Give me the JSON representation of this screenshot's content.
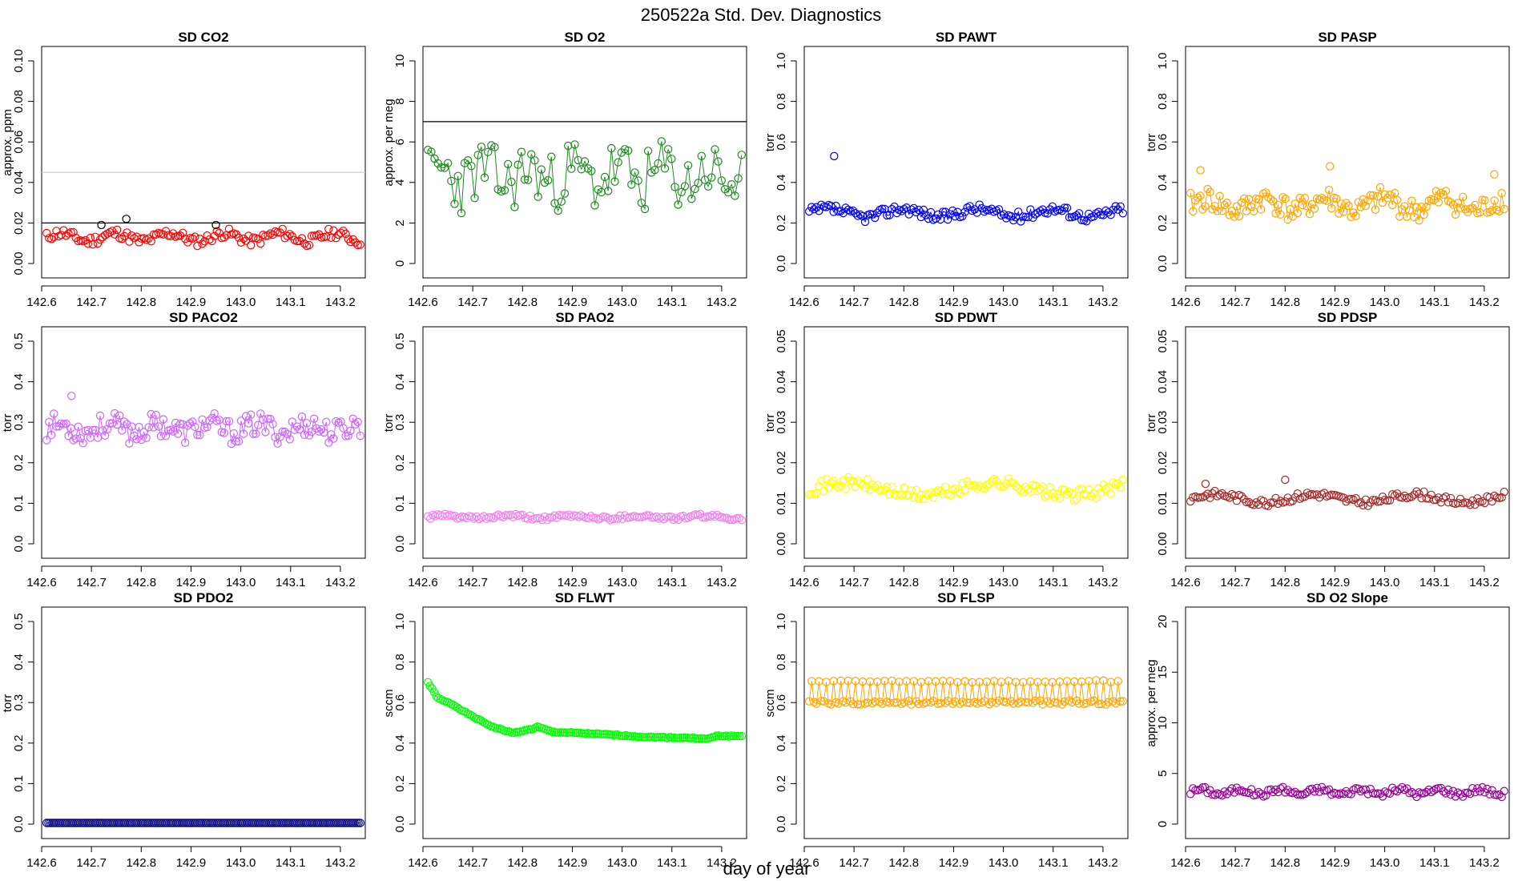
{
  "figure_title": "250522a   Std. Dev. Diagnostics",
  "x_axis_label": "day of year",
  "chart_data": [
    {
      "type": "scatter",
      "title": "SD CO2",
      "ylabel": "approx. ppm",
      "color": "#ff0000",
      "xlim": [
        142.6,
        143.25
      ],
      "ylim": [
        0,
        0.1
      ],
      "xticks": [
        "142.6",
        "142.7",
        "142.8",
        "142.9",
        "143.0",
        "143.1",
        "143.2"
      ],
      "yticks": [
        "0.00",
        "0.02",
        "0.04",
        "0.06",
        "0.08",
        "0.10"
      ],
      "reference_lines": [
        {
          "y": 0.02,
          "color": "#000000"
        },
        {
          "y": 0.045,
          "color": "#cccccc"
        }
      ],
      "x_start": 142.61,
      "x_end": 143.24,
      "base": 0.013,
      "amplitude": 0.002,
      "noise": 0.0025,
      "period": 0.11,
      "seed": 11,
      "highlight_points": [
        {
          "x": 142.72,
          "y": 0.019,
          "color": "#000000"
        },
        {
          "x": 142.77,
          "y": 0.022,
          "color": "#000000"
        },
        {
          "x": 142.95,
          "y": 0.019,
          "color": "#000000"
        }
      ]
    },
    {
      "type": "scatter",
      "title": "SD O2",
      "ylabel": "approx. per meg",
      "color": "#228b22",
      "xlim": [
        142.6,
        143.25
      ],
      "ylim": [
        0,
        10
      ],
      "xticks": [
        "142.6",
        "142.7",
        "142.8",
        "142.9",
        "143.0",
        "143.1",
        "143.2"
      ],
      "yticks": [
        "0",
        "2",
        "4",
        "6",
        "8",
        "10"
      ],
      "reference_lines": [
        {
          "y": 7,
          "color": "#000000"
        }
      ],
      "x_start": 142.61,
      "x_end": 143.24,
      "base": 4.3,
      "amplitude": 0.4,
      "noise": 1.5,
      "period": 0.09,
      "seed": 23,
      "n": 95,
      "show_lines": true
    },
    {
      "type": "scatter",
      "title": "SD PAWT",
      "ylabel": "torr",
      "color": "#0000ff",
      "xlim": [
        142.6,
        143.25
      ],
      "ylim": [
        0,
        1
      ],
      "xticks": [
        "142.6",
        "142.7",
        "142.8",
        "142.9",
        "143.0",
        "143.1",
        "143.2"
      ],
      "yticks": [
        "0.0",
        "0.2",
        "0.4",
        "0.6",
        "0.8",
        "1.0"
      ],
      "reference_lines": [],
      "x_start": 142.61,
      "x_end": 143.24,
      "base": 0.25,
      "amplitude": 0.02,
      "noise": 0.025,
      "period": 0.15,
      "seed": 37,
      "highlight_points": [
        {
          "x": 142.66,
          "y": 0.53,
          "color": "#0000ff"
        }
      ],
      "show_lines": true
    },
    {
      "type": "scatter",
      "title": "SD PASP",
      "ylabel": "torr",
      "color": "#ffa500",
      "xlim": [
        142.6,
        143.25
      ],
      "ylim": [
        0,
        1
      ],
      "xticks": [
        "142.6",
        "142.7",
        "142.8",
        "142.9",
        "143.0",
        "143.1",
        "143.2"
      ],
      "yticks": [
        "0.0",
        "0.2",
        "0.4",
        "0.6",
        "0.8",
        "1.0"
      ],
      "reference_lines": [],
      "x_start": 142.61,
      "x_end": 143.24,
      "base": 0.29,
      "amplitude": 0.03,
      "noise": 0.06,
      "period": 0.12,
      "seed": 41,
      "highlight_points": [
        {
          "x": 142.63,
          "y": 0.46,
          "color": "#ffa500"
        },
        {
          "x": 142.89,
          "y": 0.48,
          "color": "#ffa500"
        },
        {
          "x": 143.22,
          "y": 0.44,
          "color": "#ffa500"
        }
      ],
      "show_lines": true
    },
    {
      "type": "scatter",
      "title": "SD PACO2",
      "ylabel": "torr",
      "color": "#cc66ff",
      "xlim": [
        142.6,
        143.25
      ],
      "ylim": [
        0,
        0.5
      ],
      "xticks": [
        "142.6",
        "142.7",
        "142.8",
        "142.9",
        "143.0",
        "143.1",
        "143.2"
      ],
      "yticks": [
        "0.0",
        "0.1",
        "0.2",
        "0.3",
        "0.4",
        "0.5"
      ],
      "reference_lines": [],
      "x_start": 142.61,
      "x_end": 143.24,
      "base": 0.285,
      "amplitude": 0.01,
      "noise": 0.03,
      "period": 0.1,
      "seed": 53,
      "highlight_points": [
        {
          "x": 142.66,
          "y": 0.365,
          "color": "#cc66ff"
        }
      ],
      "show_lines": true
    },
    {
      "type": "scatter",
      "title": "SD PAO2",
      "ylabel": "torr",
      "color": "#ee82ee",
      "xlim": [
        142.6,
        143.25
      ],
      "ylim": [
        0,
        0.5
      ],
      "xticks": [
        "142.6",
        "142.7",
        "142.8",
        "142.9",
        "143.0",
        "143.1",
        "143.2"
      ],
      "yticks": [
        "0.0",
        "0.1",
        "0.2",
        "0.3",
        "0.4",
        "0.5"
      ],
      "reference_lines": [],
      "x_start": 142.61,
      "x_end": 143.24,
      "base": 0.066,
      "amplitude": 0.003,
      "noise": 0.005,
      "period": 0.13,
      "seed": 61
    },
    {
      "type": "scatter",
      "title": "SD PDWT",
      "ylabel": "torr",
      "color": "#ffff00",
      "xlim": [
        142.6,
        143.25
      ],
      "ylim": [
        0,
        0.05
      ],
      "xticks": [
        "142.6",
        "142.7",
        "142.8",
        "142.9",
        "143.0",
        "143.1",
        "143.2"
      ],
      "yticks": [
        "0.00",
        "0.01",
        "0.02",
        "0.03",
        "0.04",
        "0.05"
      ],
      "reference_lines": [],
      "x_start": 142.61,
      "x_end": 143.24,
      "base": 0.0135,
      "amplitude": 0.0015,
      "noise": 0.0015,
      "period": 0.3,
      "seed": 71
    },
    {
      "type": "scatter",
      "title": "SD PDSP",
      "ylabel": "torr",
      "color": "#a52a2a",
      "xlim": [
        142.6,
        143.25
      ],
      "ylim": [
        0,
        0.05
      ],
      "xticks": [
        "142.6",
        "142.7",
        "142.8",
        "142.9",
        "143.0",
        "143.1",
        "143.2"
      ],
      "yticks": [
        "0.00",
        "0.01",
        "0.02",
        "0.03",
        "0.04",
        "0.05"
      ],
      "reference_lines": [],
      "x_start": 142.61,
      "x_end": 143.24,
      "base": 0.0112,
      "amplitude": 0.001,
      "noise": 0.0009,
      "period": 0.2,
      "seed": 83,
      "highlight_points": [
        {
          "x": 142.64,
          "y": 0.0148,
          "color": "#a52a2a"
        },
        {
          "x": 142.8,
          "y": 0.0158,
          "color": "#a52a2a"
        }
      ]
    },
    {
      "type": "scatter",
      "title": "SD PDO2",
      "ylabel": "torr",
      "color": "#00008b",
      "xlim": [
        142.6,
        143.25
      ],
      "ylim": [
        0,
        0.5
      ],
      "xticks": [
        "142.6",
        "142.7",
        "142.8",
        "142.9",
        "143.0",
        "143.1",
        "143.2"
      ],
      "yticks": [
        "0.0",
        "0.1",
        "0.2",
        "0.3",
        "0.4",
        "0.5"
      ],
      "reference_lines": [],
      "x_start": 142.61,
      "x_end": 143.24,
      "base": 0.003,
      "amplitude": 0,
      "noise": 0,
      "period": 0.2,
      "seed": 5,
      "n": 170,
      "show_lines": true
    },
    {
      "type": "scatter",
      "title": "SD FLWT",
      "ylabel": "sccm",
      "color": "#00ff00",
      "xlim": [
        142.6,
        143.25
      ],
      "ylim": [
        0,
        1
      ],
      "xticks": [
        "142.6",
        "142.7",
        "142.8",
        "142.9",
        "143.0",
        "143.1",
        "143.2"
      ],
      "yticks": [
        "0.0",
        "0.2",
        "0.4",
        "0.6",
        "0.8",
        "1.0"
      ],
      "reference_lines": [],
      "x_start": 142.61,
      "x_end": 143.24,
      "n": 150,
      "show_lines": true,
      "curve": [
        [
          142.61,
          0.7
        ],
        [
          142.63,
          0.62
        ],
        [
          142.66,
          0.59
        ],
        [
          142.7,
          0.53
        ],
        [
          142.74,
          0.48
        ],
        [
          142.78,
          0.45
        ],
        [
          142.82,
          0.47
        ],
        [
          142.83,
          0.48
        ],
        [
          142.86,
          0.455
        ],
        [
          142.95,
          0.445
        ],
        [
          143.05,
          0.43
        ],
        [
          143.15,
          0.425
        ],
        [
          143.17,
          0.42
        ],
        [
          143.19,
          0.435
        ],
        [
          143.24,
          0.435
        ]
      ]
    },
    {
      "type": "scatter",
      "title": "SD FLSP",
      "ylabel": "sccm",
      "color": "#ffa500",
      "xlim": [
        142.6,
        143.25
      ],
      "ylim": [
        0,
        1
      ],
      "xticks": [
        "142.6",
        "142.7",
        "142.8",
        "142.9",
        "143.0",
        "143.1",
        "143.2"
      ],
      "yticks": [
        "0.0",
        "0.2",
        "0.4",
        "0.6",
        "0.8",
        "1.0"
      ],
      "reference_lines": [],
      "x_start": 142.61,
      "x_end": 143.24,
      "base": 0.6,
      "amplitude": 0,
      "noise": 0.01,
      "period": 0.2,
      "seed": 97,
      "show_lines": true,
      "upper_band": 0.705
    },
    {
      "type": "scatter",
      "title": "SD O2 Slope",
      "ylabel": "approx. per meg",
      "color": "#990099",
      "xlim": [
        142.6,
        143.25
      ],
      "ylim": [
        0,
        20
      ],
      "xticks": [
        "142.6",
        "142.7",
        "142.8",
        "142.9",
        "143.0",
        "143.1",
        "143.2"
      ],
      "yticks": [
        "0",
        "5",
        "10",
        "15",
        "20"
      ],
      "reference_lines": [],
      "x_start": 142.61,
      "x_end": 143.24,
      "base": 3.2,
      "amplitude": 0.25,
      "noise": 0.3,
      "period": 0.08,
      "seed": 101
    }
  ]
}
